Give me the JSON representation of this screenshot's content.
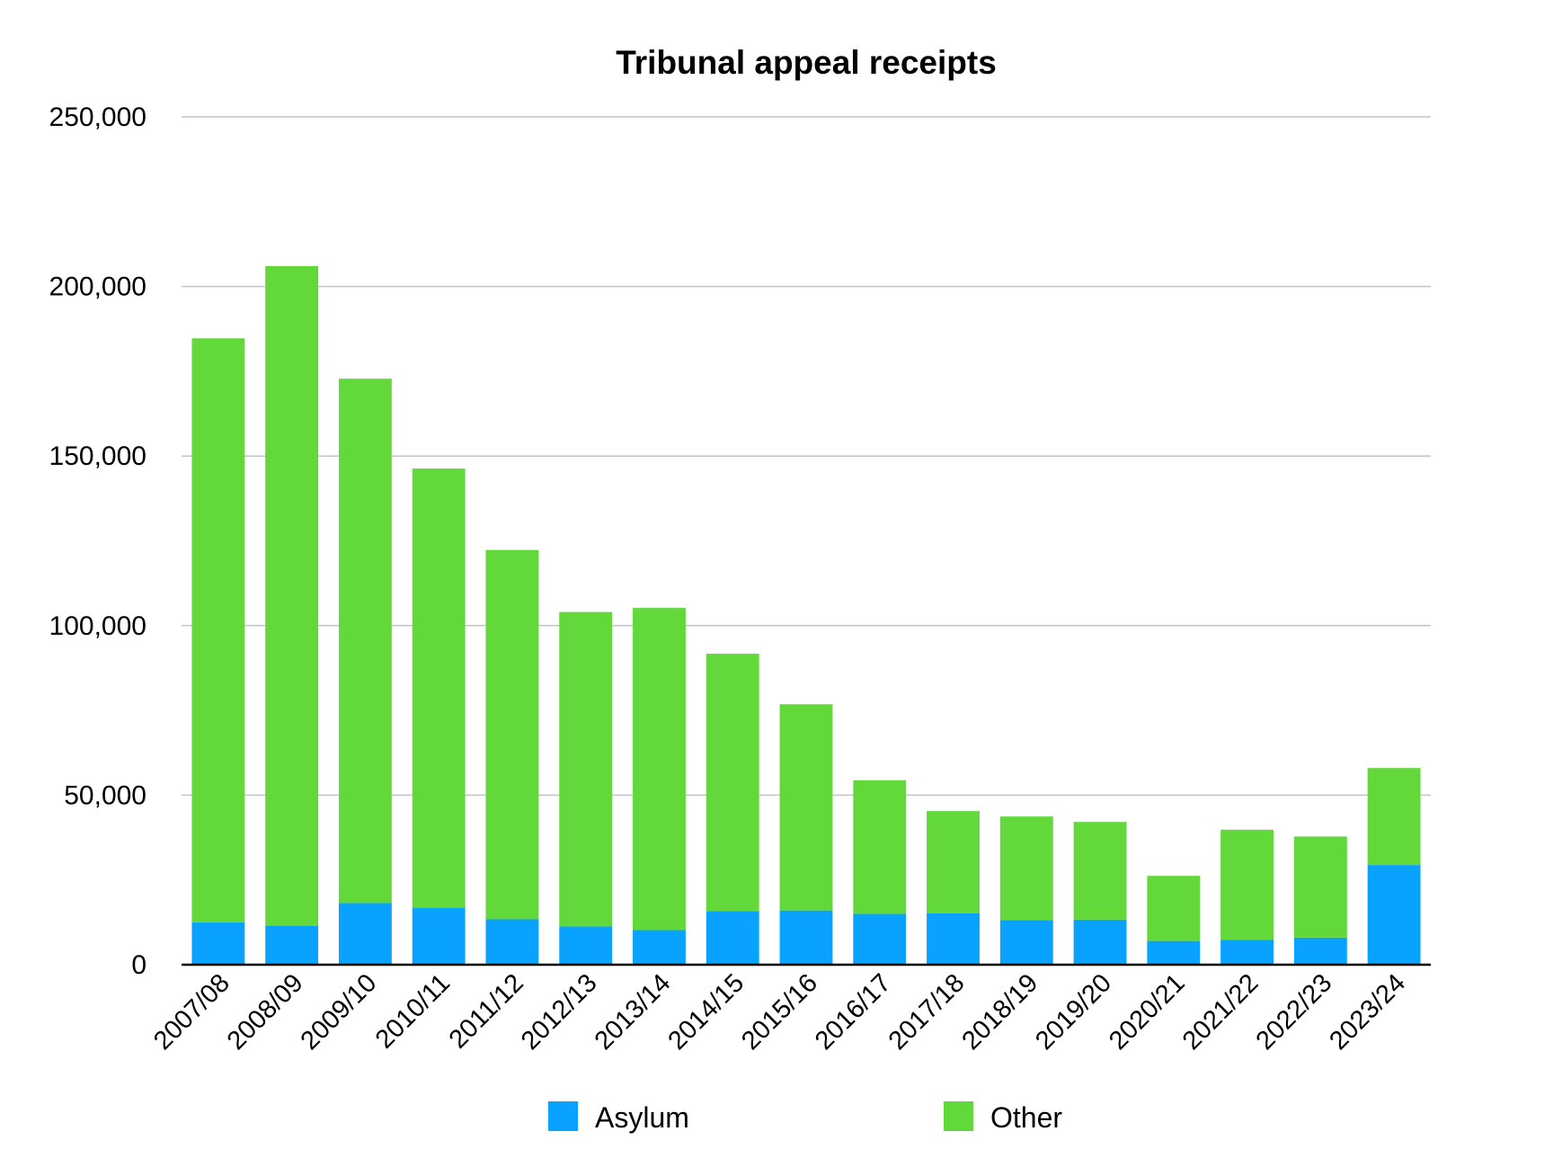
{
  "chart_data": {
    "type": "bar",
    "stacked": true,
    "title": "Tribunal appeal receipts",
    "xlabel": "",
    "ylabel": "",
    "ylim": [
      0,
      250000
    ],
    "yticks": [
      0,
      50000,
      100000,
      150000,
      200000,
      250000
    ],
    "ytick_labels": [
      "0",
      "50,000",
      "100,000",
      "150,000",
      "200,000",
      "250,000"
    ],
    "grid": true,
    "legend_position": "bottom",
    "categories": [
      "2007/08",
      "2008/09",
      "2009/10",
      "2010/11",
      "2011/12",
      "2012/13",
      "2013/14",
      "2014/15",
      "2015/16",
      "2016/17",
      "2017/18",
      "2018/19",
      "2019/20",
      "2020/21",
      "2021/22",
      "2022/23",
      "2023/24"
    ],
    "series": [
      {
        "name": "Asylum",
        "color": "#0aa2ff",
        "values": [
          12500,
          11500,
          18200,
          16800,
          13400,
          11300,
          10200,
          15800,
          16000,
          15000,
          15200,
          13200,
          13300,
          7000,
          7300,
          8000,
          29400
        ]
      },
      {
        "name": "Other",
        "color": "#62d83a",
        "values": [
          172200,
          194500,
          154600,
          129500,
          108900,
          92700,
          95000,
          75900,
          60800,
          39400,
          30100,
          30500,
          28800,
          19200,
          32500,
          29800,
          28600
        ]
      }
    ]
  }
}
